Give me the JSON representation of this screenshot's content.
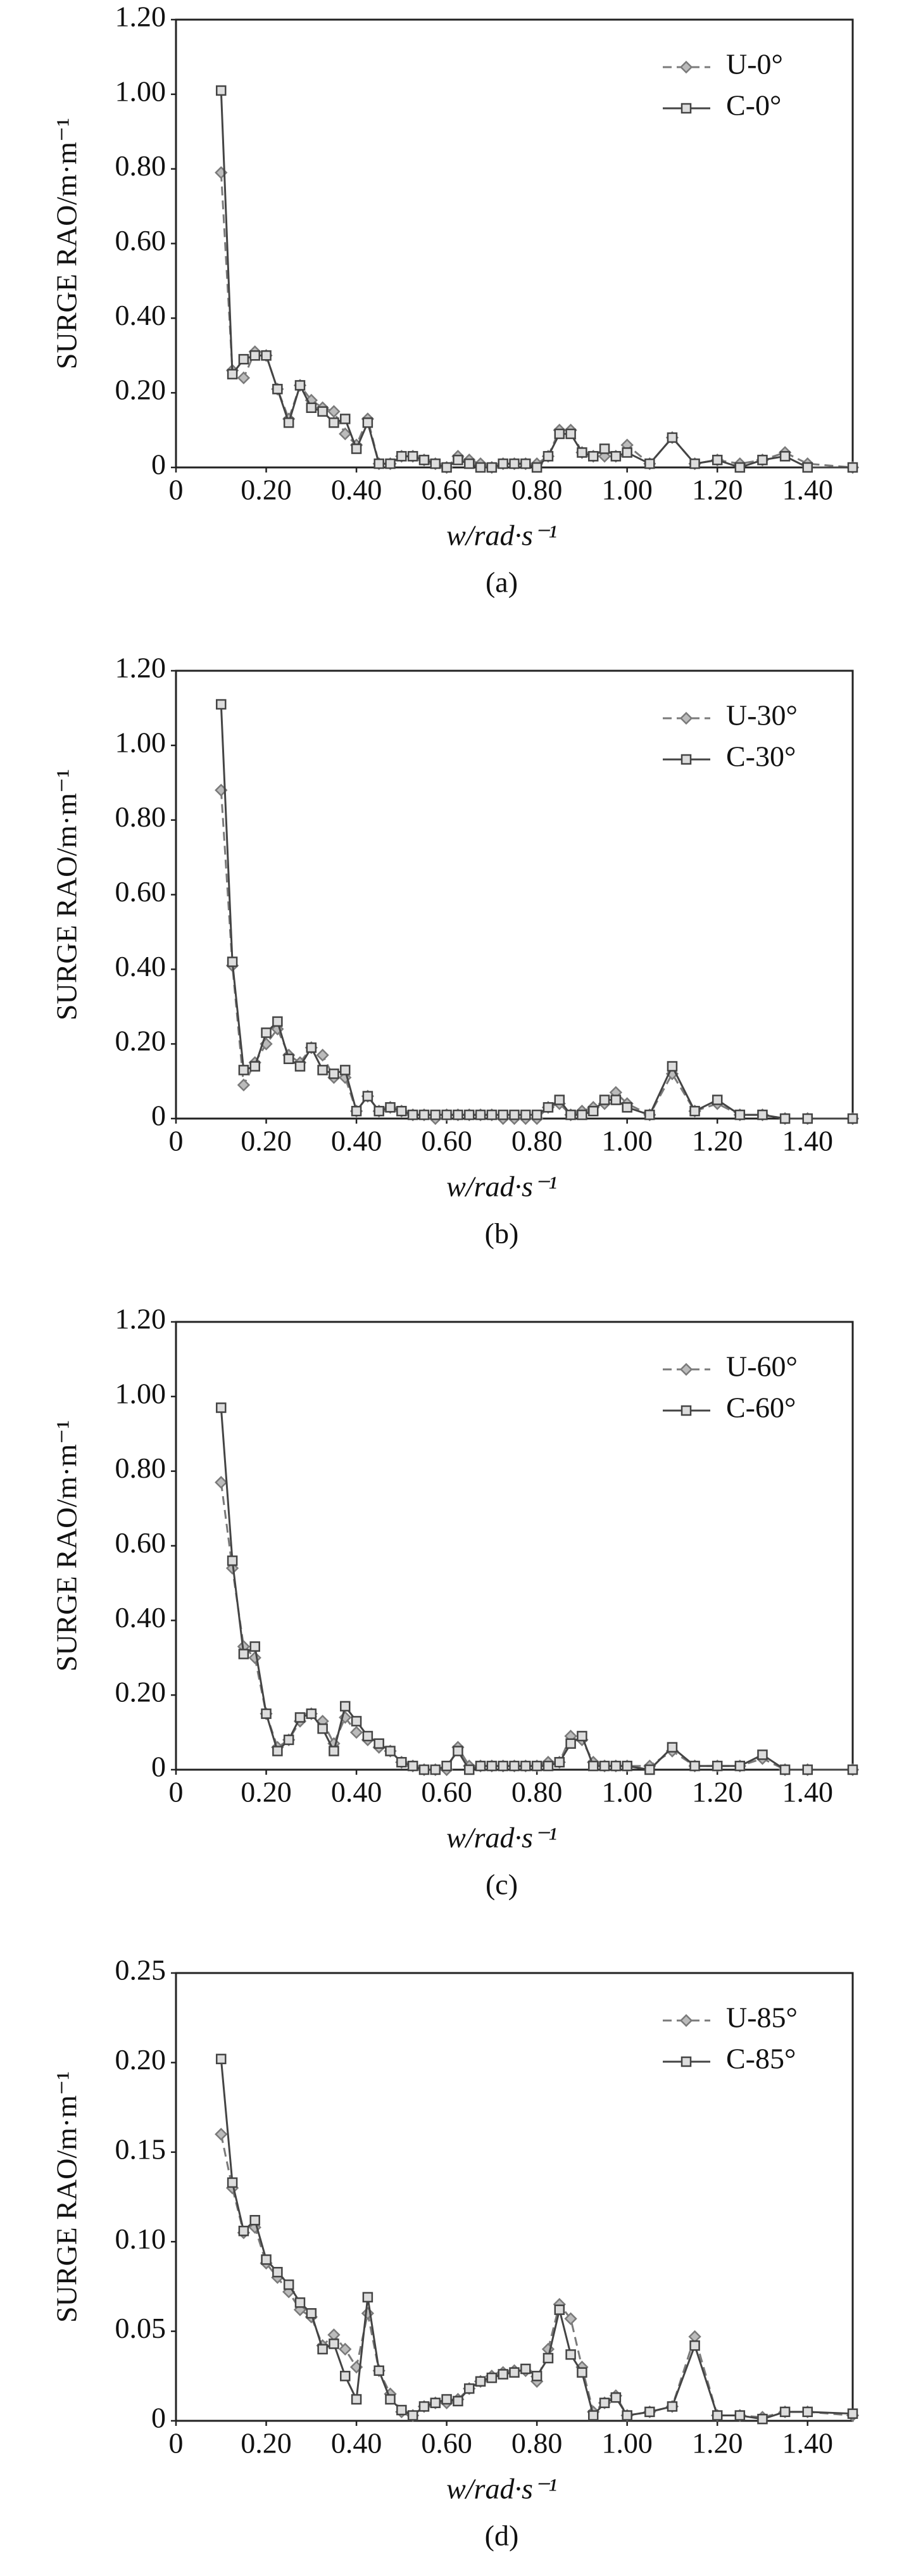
{
  "chart_data": [
    {
      "type": "line",
      "caption": "(a)",
      "xlabel": "w/rad·s⁻¹",
      "ylabel": "SURGE RAO/m·m⁻¹",
      "legend": "upper right",
      "x": [
        0.1,
        0.125,
        0.15,
        0.175,
        0.2,
        0.225,
        0.25,
        0.275,
        0.3,
        0.325,
        0.35,
        0.375,
        0.4,
        0.425,
        0.45,
        0.475,
        0.5,
        0.525,
        0.55,
        0.575,
        0.6,
        0.625,
        0.65,
        0.675,
        0.7,
        0.725,
        0.75,
        0.775,
        0.8,
        0.825,
        0.85,
        0.875,
        0.9,
        0.925,
        0.95,
        0.975,
        1.0,
        1.05,
        1.1,
        1.15,
        1.2,
        1.25,
        1.3,
        1.35,
        1.4,
        1.5
      ],
      "series": [
        {
          "name": "U-0°",
          "color": "#7a7a7a",
          "style": "dashed",
          "marker": "diamond",
          "values": [
            0.79,
            0.26,
            0.24,
            0.31,
            0.3,
            0.21,
            0.13,
            0.22,
            0.18,
            0.16,
            0.15,
            0.09,
            0.06,
            0.13,
            0.01,
            0.01,
            0.03,
            0.03,
            0.02,
            0.01,
            0.0,
            0.03,
            0.02,
            0.01,
            0.0,
            0.01,
            0.01,
            0.01,
            0.01,
            0.03,
            0.1,
            0.1,
            0.04,
            0.03,
            0.03,
            0.03,
            0.06,
            0.01,
            0.08,
            0.01,
            0.02,
            0.01,
            0.02,
            0.04,
            0.01,
            0.0
          ]
        },
        {
          "name": "C-0°",
          "color": "#444444",
          "style": "solid",
          "marker": "square",
          "values": [
            1.01,
            0.25,
            0.29,
            0.3,
            0.3,
            0.21,
            0.12,
            0.22,
            0.16,
            0.15,
            0.12,
            0.13,
            0.05,
            0.12,
            0.01,
            0.01,
            0.03,
            0.03,
            0.02,
            0.01,
            0.0,
            0.02,
            0.01,
            0.0,
            0.0,
            0.01,
            0.01,
            0.01,
            0.0,
            0.03,
            0.09,
            0.09,
            0.04,
            0.03,
            0.05,
            0.03,
            0.04,
            0.01,
            0.08,
            0.01,
            0.02,
            0.0,
            0.02,
            0.03,
            0.0,
            0.0
          ]
        }
      ],
      "xlim": [
        0,
        1.5
      ],
      "xticks": [
        0,
        {
          "value": 0.2,
          "label": "0.20"
        },
        {
          "value": 0.4,
          "label": "0.40"
        },
        {
          "value": 0.6,
          "label": "0.60"
        },
        {
          "value": 0.8,
          "label": "0.80"
        },
        {
          "value": 1.0,
          "label": "1.00"
        },
        {
          "value": 1.2,
          "label": "1.20"
        },
        {
          "value": 1.4,
          "label": "1.40"
        }
      ],
      "ylim": [
        0,
        1.2
      ],
      "yticks": [
        0,
        {
          "value": 0.2,
          "label": "0.20"
        },
        {
          "value": 0.4,
          "label": "0.40"
        },
        {
          "value": 0.6,
          "label": "0.60"
        },
        {
          "value": 0.8,
          "label": "0.80"
        },
        {
          "value": 1.0,
          "label": "1.00"
        },
        {
          "value": 1.2,
          "label": "1.20"
        }
      ]
    },
    {
      "type": "line",
      "caption": "(b)",
      "xlabel": "w/rad·s⁻¹",
      "ylabel": "SURGE RAO/m·m⁻¹",
      "legend": "upper right",
      "x": [
        0.1,
        0.125,
        0.15,
        0.175,
        0.2,
        0.225,
        0.25,
        0.275,
        0.3,
        0.325,
        0.35,
        0.375,
        0.4,
        0.425,
        0.45,
        0.475,
        0.5,
        0.525,
        0.55,
        0.575,
        0.6,
        0.625,
        0.65,
        0.675,
        0.7,
        0.725,
        0.75,
        0.775,
        0.8,
        0.825,
        0.85,
        0.875,
        0.9,
        0.925,
        0.95,
        0.975,
        1.0,
        1.05,
        1.1,
        1.15,
        1.2,
        1.25,
        1.3,
        1.35,
        1.4,
        1.5
      ],
      "series": [
        {
          "name": "U-30°",
          "color": "#7a7a7a",
          "style": "dashed",
          "marker": "diamond",
          "values": [
            0.88,
            0.41,
            0.09,
            0.15,
            0.2,
            0.24,
            0.17,
            0.15,
            0.19,
            0.17,
            0.11,
            0.11,
            0.02,
            0.06,
            0.02,
            0.03,
            0.02,
            0.01,
            0.01,
            0.0,
            0.01,
            0.01,
            0.01,
            0.01,
            0.01,
            0.0,
            0.0,
            0.0,
            0.0,
            0.03,
            0.04,
            0.01,
            0.02,
            0.03,
            0.04,
            0.07,
            0.04,
            0.01,
            0.12,
            0.02,
            0.04,
            0.01,
            0.01,
            0.0,
            0.0,
            0.0
          ]
        },
        {
          "name": "C-30°",
          "color": "#444444",
          "style": "solid",
          "marker": "square",
          "values": [
            1.11,
            0.42,
            0.13,
            0.14,
            0.23,
            0.26,
            0.16,
            0.14,
            0.19,
            0.13,
            0.12,
            0.13,
            0.02,
            0.06,
            0.02,
            0.03,
            0.02,
            0.01,
            0.01,
            0.01,
            0.01,
            0.01,
            0.01,
            0.01,
            0.01,
            0.01,
            0.01,
            0.01,
            0.01,
            0.03,
            0.05,
            0.01,
            0.01,
            0.02,
            0.05,
            0.05,
            0.03,
            0.01,
            0.14,
            0.02,
            0.05,
            0.01,
            0.01,
            0.0,
            0.0,
            0.0
          ]
        }
      ],
      "xlim": [
        0,
        1.5
      ],
      "xticks": [
        0,
        {
          "value": 0.2,
          "label": "0.20"
        },
        {
          "value": 0.4,
          "label": "0.40"
        },
        {
          "value": 0.6,
          "label": "0.60"
        },
        {
          "value": 0.8,
          "label": "0.80"
        },
        {
          "value": 1.0,
          "label": "1.00"
        },
        {
          "value": 1.2,
          "label": "1.20"
        },
        {
          "value": 1.4,
          "label": "1.40"
        }
      ],
      "ylim": [
        0,
        1.2
      ],
      "yticks": [
        0,
        {
          "value": 0.2,
          "label": "0.20"
        },
        {
          "value": 0.4,
          "label": "0.40"
        },
        {
          "value": 0.6,
          "label": "0.60"
        },
        {
          "value": 0.8,
          "label": "0.80"
        },
        {
          "value": 1.0,
          "label": "1.00"
        },
        {
          "value": 1.2,
          "label": "1.20"
        }
      ]
    },
    {
      "type": "line",
      "caption": "(c)",
      "xlabel": "w/rad·s⁻¹",
      "ylabel": "SURGE RAO/m·m⁻¹",
      "legend": "upper right",
      "x": [
        0.1,
        0.125,
        0.15,
        0.175,
        0.2,
        0.225,
        0.25,
        0.275,
        0.3,
        0.325,
        0.35,
        0.375,
        0.4,
        0.425,
        0.45,
        0.475,
        0.5,
        0.525,
        0.55,
        0.575,
        0.6,
        0.625,
        0.65,
        0.675,
        0.7,
        0.725,
        0.75,
        0.775,
        0.8,
        0.825,
        0.85,
        0.875,
        0.9,
        0.925,
        0.95,
        0.975,
        1.0,
        1.05,
        1.1,
        1.15,
        1.2,
        1.25,
        1.3,
        1.35,
        1.4,
        1.5
      ],
      "series": [
        {
          "name": "U-60°",
          "color": "#7a7a7a",
          "style": "dashed",
          "marker": "diamond",
          "values": [
            0.77,
            0.54,
            0.33,
            0.3,
            0.15,
            0.06,
            0.08,
            0.13,
            0.15,
            0.13,
            0.07,
            0.14,
            0.1,
            0.08,
            0.06,
            0.05,
            0.02,
            0.01,
            0.0,
            0.0,
            0.0,
            0.06,
            0.01,
            0.01,
            0.01,
            0.01,
            0.01,
            0.01,
            0.01,
            0.02,
            0.02,
            0.09,
            0.08,
            0.02,
            0.01,
            0.01,
            0.01,
            0.01,
            0.05,
            0.01,
            0.01,
            0.01,
            0.03,
            0.0,
            0.0,
            0.0
          ]
        },
        {
          "name": "C-60°",
          "color": "#444444",
          "style": "solid",
          "marker": "square",
          "values": [
            0.97,
            0.56,
            0.31,
            0.33,
            0.15,
            0.05,
            0.08,
            0.14,
            0.15,
            0.11,
            0.05,
            0.17,
            0.13,
            0.09,
            0.07,
            0.05,
            0.02,
            0.01,
            0.0,
            0.0,
            0.01,
            0.05,
            0.0,
            0.01,
            0.01,
            0.01,
            0.01,
            0.01,
            0.01,
            0.01,
            0.02,
            0.07,
            0.09,
            0.01,
            0.01,
            0.01,
            0.01,
            0.0,
            0.06,
            0.01,
            0.01,
            0.01,
            0.04,
            0.0,
            0.0,
            0.0
          ]
        }
      ],
      "xlim": [
        0,
        1.5
      ],
      "xticks": [
        0,
        {
          "value": 0.2,
          "label": "0.20"
        },
        {
          "value": 0.4,
          "label": "0.40"
        },
        {
          "value": 0.6,
          "label": "0.60"
        },
        {
          "value": 0.8,
          "label": "0.80"
        },
        {
          "value": 1.0,
          "label": "1.00"
        },
        {
          "value": 1.2,
          "label": "1.20"
        },
        {
          "value": 1.4,
          "label": "1.40"
        }
      ],
      "ylim": [
        0,
        1.2
      ],
      "yticks": [
        0,
        {
          "value": 0.2,
          "label": "0.20"
        },
        {
          "value": 0.4,
          "label": "0.40"
        },
        {
          "value": 0.6,
          "label": "0.60"
        },
        {
          "value": 0.8,
          "label": "0.80"
        },
        {
          "value": 1.0,
          "label": "1.00"
        },
        {
          "value": 1.2,
          "label": "1.20"
        }
      ]
    },
    {
      "type": "line",
      "caption": "(d)",
      "xlabel": "w/rad·s⁻¹",
      "ylabel": "SURGE RAO/m·m⁻¹",
      "legend": "upper right",
      "x": [
        0.1,
        0.125,
        0.15,
        0.175,
        0.2,
        0.225,
        0.25,
        0.275,
        0.3,
        0.325,
        0.35,
        0.375,
        0.4,
        0.425,
        0.45,
        0.475,
        0.5,
        0.525,
        0.55,
        0.575,
        0.6,
        0.625,
        0.65,
        0.675,
        0.7,
        0.725,
        0.75,
        0.775,
        0.8,
        0.825,
        0.85,
        0.875,
        0.9,
        0.925,
        0.95,
        0.975,
        1.0,
        1.05,
        1.1,
        1.15,
        1.2,
        1.25,
        1.3,
        1.35,
        1.4,
        1.5
      ],
      "series": [
        {
          "name": "U-85°",
          "color": "#7a7a7a",
          "style": "dashed",
          "marker": "diamond",
          "values": [
            0.16,
            0.13,
            0.105,
            0.108,
            0.088,
            0.08,
            0.072,
            0.062,
            0.058,
            0.042,
            0.048,
            0.04,
            0.03,
            0.06,
            0.028,
            0.015,
            0.005,
            0.003,
            0.008,
            0.01,
            0.01,
            0.012,
            0.018,
            0.022,
            0.025,
            0.027,
            0.028,
            0.028,
            0.022,
            0.04,
            0.065,
            0.057,
            0.03,
            0.005,
            0.01,
            0.014,
            0.003,
            0.005,
            0.008,
            0.047,
            0.003,
            0.003,
            0.002,
            0.005,
            0.005,
            0.003
          ]
        },
        {
          "name": "C-85°",
          "color": "#444444",
          "style": "solid",
          "marker": "square",
          "values": [
            0.202,
            0.133,
            0.106,
            0.112,
            0.09,
            0.083,
            0.076,
            0.066,
            0.06,
            0.04,
            0.043,
            0.025,
            0.012,
            0.069,
            0.028,
            0.012,
            0.006,
            0.003,
            0.008,
            0.01,
            0.012,
            0.011,
            0.018,
            0.022,
            0.024,
            0.026,
            0.027,
            0.029,
            0.025,
            0.035,
            0.062,
            0.037,
            0.027,
            0.003,
            0.01,
            0.013,
            0.003,
            0.005,
            0.008,
            0.042,
            0.003,
            0.003,
            0.001,
            0.005,
            0.005,
            0.004
          ]
        }
      ],
      "xlim": [
        0,
        1.5
      ],
      "xticks": [
        0,
        {
          "value": 0.2,
          "label": "0.20"
        },
        {
          "value": 0.4,
          "label": "0.40"
        },
        {
          "value": 0.6,
          "label": "0.60"
        },
        {
          "value": 0.8,
          "label": "0.80"
        },
        {
          "value": 1.0,
          "label": "1.00"
        },
        {
          "value": 1.2,
          "label": "1.20"
        },
        {
          "value": 1.4,
          "label": "1.40"
        }
      ],
      "ylim": [
        0,
        0.25
      ],
      "yticks": [
        0,
        {
          "value": 0.05,
          "label": "0.05"
        },
        {
          "value": 0.1,
          "label": "0.10"
        },
        {
          "value": 0.15,
          "label": "0.15"
        },
        {
          "value": 0.2,
          "label": "0.20"
        },
        {
          "value": 0.25,
          "label": "0.25"
        }
      ]
    }
  ]
}
